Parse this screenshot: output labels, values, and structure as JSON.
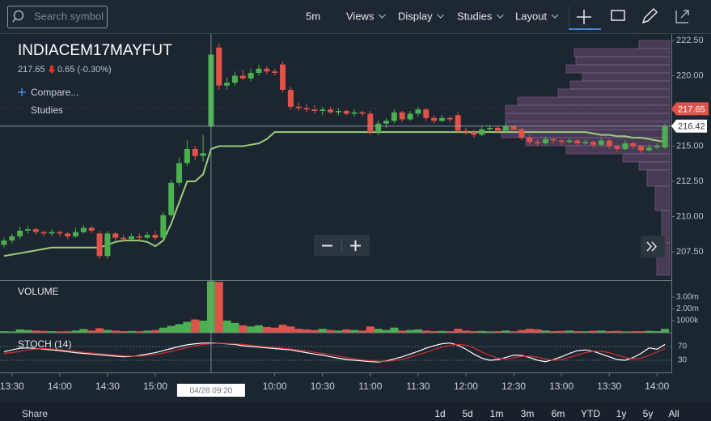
{
  "toolbar": {
    "search_placeholder": "Search symbol",
    "menus": [
      "5m",
      "Views",
      "Display",
      "Studies",
      "Layout"
    ]
  },
  "header": {
    "symbol": "INDIACEM17MAYFUT",
    "price": 217.65,
    "change": "0.65 (-0.30%)",
    "compare": "Compare...",
    "studies": "Studies"
  },
  "chart_data": {
    "type": "candlestick",
    "up_color": "#4caf50",
    "down_color": "#e0534a",
    "ma_color": "#9ccc7c",
    "xlim": [
      -0.5,
      83.8
    ],
    "ylim": [
      205.49,
      222.96
    ],
    "yticks": [
      {
        "value": 222.5,
        "label": "222.50"
      },
      {
        "value": 220,
        "label": "220.00"
      },
      {
        "value": 217.5,
        "label": "217.50"
      },
      {
        "value": 215,
        "label": "215.00"
      },
      {
        "value": 212.5,
        "label": "212.50"
      },
      {
        "value": 210,
        "label": "210.00"
      },
      {
        "value": 207.5,
        "label": "207.50"
      }
    ],
    "xticks": [
      {
        "value": 1,
        "label": "13:30"
      },
      {
        "value": 7,
        "label": "14:00"
      },
      {
        "value": 13,
        "label": "14:30"
      },
      {
        "value": 19,
        "label": "15:00"
      },
      {
        "value": 34,
        "label": "10:00"
      },
      {
        "value": 40,
        "label": "10:30"
      },
      {
        "value": 46,
        "label": "11:00"
      },
      {
        "value": 52,
        "label": "11:30"
      },
      {
        "value": 58,
        "label": "12:00"
      },
      {
        "value": 64,
        "label": "12:30"
      },
      {
        "value": 70,
        "label": "13:00"
      },
      {
        "value": 76,
        "label": "13:30"
      },
      {
        "value": 82,
        "label": "14:00"
      }
    ],
    "last_price": 217.65,
    "crosshair": {
      "x": 26,
      "price": 216.42,
      "label": "04/28 09:20"
    },
    "candles": [
      [
        208.0,
        208.5,
        207.8,
        208.3
      ],
      [
        208.3,
        208.8,
        208.1,
        208.6
      ],
      [
        208.6,
        209.3,
        208.4,
        209.0
      ],
      [
        209.0,
        209.3,
        208.8,
        209.1
      ],
      [
        209.1,
        209.2,
        208.7,
        208.9
      ],
      [
        208.9,
        209.0,
        208.6,
        208.8
      ],
      [
        208.8,
        209.1,
        208.6,
        208.9
      ],
      [
        208.9,
        209.0,
        208.6,
        208.8
      ],
      [
        208.8,
        208.9,
        208.4,
        208.6
      ],
      [
        208.6,
        209.2,
        208.5,
        208.9
      ],
      [
        208.9,
        209.4,
        208.8,
        209.2
      ],
      [
        209.2,
        209.3,
        208.8,
        209.0
      ],
      [
        208.8,
        209.0,
        207.0,
        207.2
      ],
      [
        207.2,
        209.0,
        207.0,
        208.8
      ],
      [
        208.8,
        208.9,
        208.3,
        208.5
      ],
      [
        208.5,
        208.7,
        208.2,
        208.4
      ],
      [
        208.4,
        208.8,
        208.3,
        208.6
      ],
      [
        208.6,
        208.8,
        208.3,
        208.5
      ],
      [
        208.5,
        208.9,
        208.4,
        208.7
      ],
      [
        208.7,
        209.0,
        208.3,
        208.5
      ],
      [
        208.5,
        210.3,
        208.4,
        210.1
      ],
      [
        210.1,
        212.6,
        210.0,
        212.4
      ],
      [
        212.4,
        214.2,
        212.2,
        213.8
      ],
      [
        213.8,
        215.4,
        213.6,
        214.8
      ],
      [
        214.8,
        215.0,
        214.0,
        214.3
      ],
      [
        214.3,
        215.8,
        213.9,
        214.5
      ],
      [
        216.4,
        221.8,
        216.3,
        221.5
      ],
      [
        222.0,
        222.3,
        219.0,
        219.3
      ],
      [
        219.3,
        219.9,
        219.0,
        219.5
      ],
      [
        219.5,
        220.3,
        219.3,
        220.0
      ],
      [
        220.0,
        220.4,
        219.7,
        219.8
      ],
      [
        219.8,
        220.5,
        219.6,
        220.2
      ],
      [
        220.2,
        220.8,
        220.0,
        220.5
      ],
      [
        220.5,
        220.7,
        220.1,
        220.3
      ],
      [
        220.3,
        220.5,
        220.0,
        220.2
      ],
      [
        220.8,
        221.0,
        218.8,
        219.0
      ],
      [
        219.0,
        219.2,
        217.6,
        217.8
      ],
      [
        217.8,
        218.1,
        217.5,
        217.7
      ],
      [
        217.7,
        218.0,
        217.4,
        217.6
      ],
      [
        217.6,
        217.9,
        217.3,
        217.5
      ],
      [
        217.5,
        217.8,
        217.2,
        217.6
      ],
      [
        217.6,
        217.8,
        217.3,
        217.4
      ],
      [
        217.4,
        217.7,
        217.2,
        217.5
      ],
      [
        217.5,
        217.6,
        217.2,
        217.3
      ],
      [
        217.3,
        217.6,
        217.1,
        217.4
      ],
      [
        217.4,
        217.5,
        217.1,
        217.3
      ],
      [
        217.3,
        217.5,
        215.8,
        216.0
      ],
      [
        216.0,
        216.8,
        215.8,
        216.6
      ],
      [
        216.6,
        217.0,
        216.3,
        216.8
      ],
      [
        216.8,
        217.6,
        216.6,
        217.4
      ],
      [
        217.4,
        217.5,
        216.7,
        216.9
      ],
      [
        216.9,
        217.5,
        216.8,
        217.3
      ],
      [
        217.3,
        217.8,
        217.1,
        217.6
      ],
      [
        217.6,
        217.7,
        216.8,
        217.0
      ],
      [
        217.0,
        217.2,
        216.6,
        216.8
      ],
      [
        216.8,
        217.2,
        216.7,
        217.0
      ],
      [
        217.0,
        217.1,
        216.7,
        216.9
      ],
      [
        217.2,
        217.4,
        215.9,
        216.1
      ],
      [
        216.1,
        216.3,
        215.8,
        216.0
      ],
      [
        216.0,
        216.2,
        215.6,
        215.8
      ],
      [
        215.8,
        216.4,
        215.7,
        216.2
      ],
      [
        216.2,
        216.5,
        216.0,
        216.3
      ],
      [
        216.3,
        216.4,
        215.9,
        216.1
      ],
      [
        216.1,
        216.6,
        216.0,
        216.4
      ],
      [
        216.4,
        216.5,
        216.0,
        216.2
      ],
      [
        216.2,
        216.3,
        215.4,
        215.6
      ],
      [
        215.6,
        215.8,
        215.1,
        215.3
      ],
      [
        215.3,
        215.5,
        215.0,
        215.2
      ],
      [
        215.2,
        215.7,
        215.1,
        215.5
      ],
      [
        215.5,
        215.6,
        215.2,
        215.4
      ],
      [
        215.4,
        215.5,
        215.1,
        215.3
      ],
      [
        215.3,
        215.6,
        215.2,
        215.4
      ],
      [
        215.4,
        215.5,
        215.0,
        215.2
      ],
      [
        215.2,
        215.5,
        215.1,
        215.3
      ],
      [
        215.3,
        215.4,
        214.9,
        215.1
      ],
      [
        215.1,
        215.6,
        215.0,
        215.4
      ],
      [
        215.4,
        215.5,
        214.8,
        215.0
      ],
      [
        215.0,
        215.1,
        214.6,
        214.8
      ],
      [
        214.8,
        215.4,
        214.7,
        215.2
      ],
      [
        215.2,
        215.3,
        214.8,
        215.0
      ],
      [
        215.0,
        215.1,
        214.5,
        214.7
      ],
      [
        214.7,
        215.1,
        214.6,
        214.9
      ],
      [
        214.9,
        215.2,
        214.8,
        215.0
      ],
      [
        214.9,
        216.6,
        214.8,
        216.4
      ]
    ],
    "ma": [
      207.2,
      207.3,
      207.4,
      207.5,
      207.6,
      207.7,
      207.8,
      207.8,
      207.8,
      207.8,
      207.8,
      207.8,
      207.8,
      208.0,
      208.2,
      208.3,
      208.3,
      208.3,
      208.2,
      207.9,
      208.3,
      209.5,
      211.0,
      212.5,
      212.5,
      213.0,
      214.8,
      215.0,
      215.0,
      215.0,
      215.0,
      215.1,
      215.2,
      215.5,
      216.0,
      216.0,
      216.0,
      216.0,
      216.0,
      216.0,
      216.0,
      216.0,
      216.0,
      216.0,
      216.0,
      216.0,
      216.0,
      216.0,
      216.0,
      216.0,
      216.0,
      216.0,
      216.0,
      216.0,
      216.0,
      216.0,
      216.0,
      216.0,
      216.0,
      216.0,
      216.0,
      216.0,
      216.0,
      216.0,
      216.0,
      216.0,
      216.0,
      216.0,
      216.0,
      216.0,
      216.0,
      216.0,
      216.0,
      216.0,
      215.9,
      215.8,
      215.8,
      215.7,
      215.7,
      215.6,
      215.6,
      215.5,
      215.4,
      215.3
    ],
    "volume": {
      "title": "VOLUME",
      "ylim": [
        0,
        4380000
      ],
      "yticks": [
        {
          "value": 3000000,
          "label": "3.00m"
        },
        {
          "value": 2000000,
          "label": "2.00m"
        },
        {
          "value": 1000000,
          "label": "1000k"
        }
      ],
      "values": [
        100000,
        80000,
        250000,
        200000,
        150000,
        120000,
        100000,
        80000,
        90000,
        150000,
        280000,
        150000,
        350000,
        200000,
        150000,
        100000,
        120000,
        90000,
        150000,
        200000,
        400000,
        550000,
        700000,
        900000,
        1100000,
        1000000,
        4350000,
        4300000,
        1000000,
        800000,
        600000,
        500000,
        600000,
        450000,
        400000,
        650000,
        500000,
        300000,
        250000,
        200000,
        300000,
        200000,
        150000,
        250000,
        200000,
        150000,
        500000,
        300000,
        200000,
        400000,
        150000,
        200000,
        250000,
        150000,
        100000,
        120000,
        100000,
        300000,
        150000,
        100000,
        120000,
        80000,
        100000,
        150000,
        90000,
        200000,
        300000,
        250000,
        150000,
        100000,
        120000,
        150000,
        100000,
        90000,
        130000,
        150000,
        100000,
        120000,
        80000,
        90000,
        100000,
        130000,
        100000,
        300000
      ]
    },
    "stoch": {
      "title": "STOCH (14)",
      "ylim": [
        -5.3,
        110
      ],
      "yticks": [
        70,
        30
      ],
      "series": [
        {
          "color": "#ffffff",
          "values": [
            55,
            60,
            65,
            66,
            64,
            62,
            60,
            58,
            55,
            52,
            50,
            48,
            46,
            44,
            42,
            40,
            41,
            44,
            48,
            52,
            58,
            64,
            70,
            75,
            78,
            80,
            80,
            79,
            78,
            76,
            72,
            70,
            68,
            66,
            64,
            62,
            60,
            56,
            52,
            48,
            45,
            40,
            36,
            32,
            30,
            28,
            26,
            25,
            28,
            34,
            40,
            48,
            56,
            65,
            72,
            78,
            80,
            74,
            62,
            48,
            36,
            30,
            32,
            38,
            45,
            44,
            38,
            30,
            26,
            32,
            40,
            50,
            58,
            60,
            56,
            48,
            40,
            32,
            30,
            38,
            50,
            66,
            62,
            76
          ]
        },
        {
          "color": "#d32f2f",
          "values": [
            50,
            52,
            56,
            60,
            63,
            64,
            63,
            61,
            58,
            56,
            53,
            51,
            49,
            47,
            45,
            43,
            42,
            42,
            44,
            47,
            51,
            56,
            62,
            67,
            72,
            76,
            78,
            79,
            79,
            78,
            76,
            74,
            71,
            69,
            67,
            65,
            63,
            60,
            57,
            53,
            50,
            46,
            42,
            38,
            34,
            31,
            29,
            27,
            27,
            29,
            33,
            39,
            46,
            53,
            61,
            68,
            74,
            76,
            74,
            66,
            54,
            44,
            36,
            34,
            37,
            41,
            42,
            39,
            34,
            30,
            32,
            38,
            45,
            52,
            56,
            56,
            52,
            45,
            38,
            34,
            36,
            44,
            54,
            64
          ]
        }
      ]
    }
  },
  "footer": {
    "share": "Share",
    "ranges": [
      "1d",
      "5d",
      "1m",
      "3m",
      "6m",
      "YTD",
      "1y",
      "5y",
      "All"
    ]
  }
}
